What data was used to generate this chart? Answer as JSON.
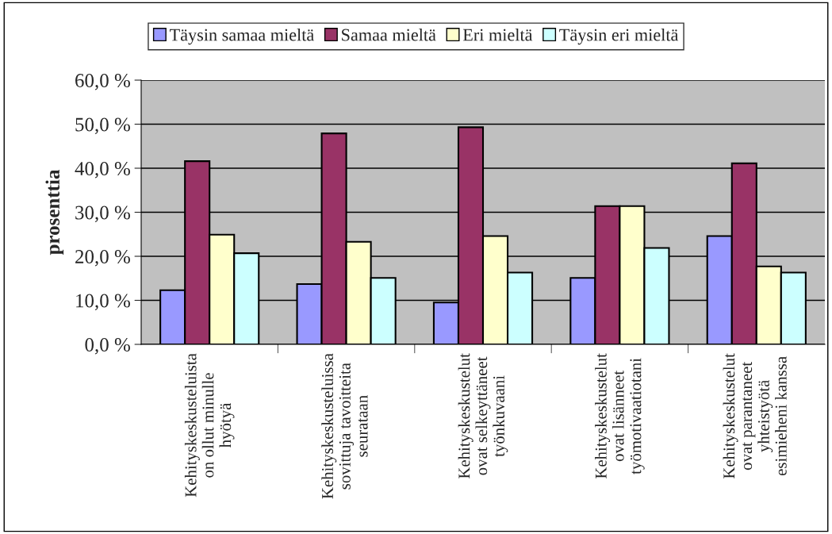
{
  "chart_data": {
    "type": "bar",
    "ylabel": "prosenttia",
    "categories": [
      "Kehityskeskusteluista\non ollut minulle\nhyötyä",
      "Kehityskeskusteluissa\nsovittuja tavoitteita\nseurataan",
      "Kehityskeskustelut\novat selkeyttäneet\ntyönkuvaani",
      "Kehityskeskustelut\novat lisänneet\ntyömotivaatiotani",
      "Kehityskeskustelut\novat parantaneet\nyhteistyötä\nesimieheni kanssa"
    ],
    "series": [
      {
        "name": "Täysin samaa mieltä",
        "color": "#9999ff",
        "values": [
          12.3,
          13.7,
          9.5,
          15.1,
          24.6
        ]
      },
      {
        "name": "Samaa mieltä",
        "color": "#993366",
        "values": [
          41.6,
          47.9,
          49.3,
          31.4,
          41.1
        ]
      },
      {
        "name": "Eri mieltä",
        "color": "#ffffcc",
        "values": [
          24.9,
          23.3,
          24.6,
          31.4,
          17.7
        ]
      },
      {
        "name": "Täysin eri mieltä",
        "color": "#ccffff",
        "values": [
          20.7,
          15.1,
          16.3,
          21.9,
          16.3
        ]
      }
    ],
    "ylim": [
      0,
      60
    ],
    "yticks": [
      {
        "value": 0,
        "label": "0,0 %"
      },
      {
        "value": 10,
        "label": "10,0 %"
      },
      {
        "value": 20,
        "label": "20,0 %"
      },
      {
        "value": 30,
        "label": "30,0 %"
      },
      {
        "value": 40,
        "label": "40,0 %"
      },
      {
        "value": 50,
        "label": "50,0 %"
      },
      {
        "value": 60,
        "label": "60,0 %"
      }
    ],
    "grid": "y",
    "legend": "top"
  }
}
